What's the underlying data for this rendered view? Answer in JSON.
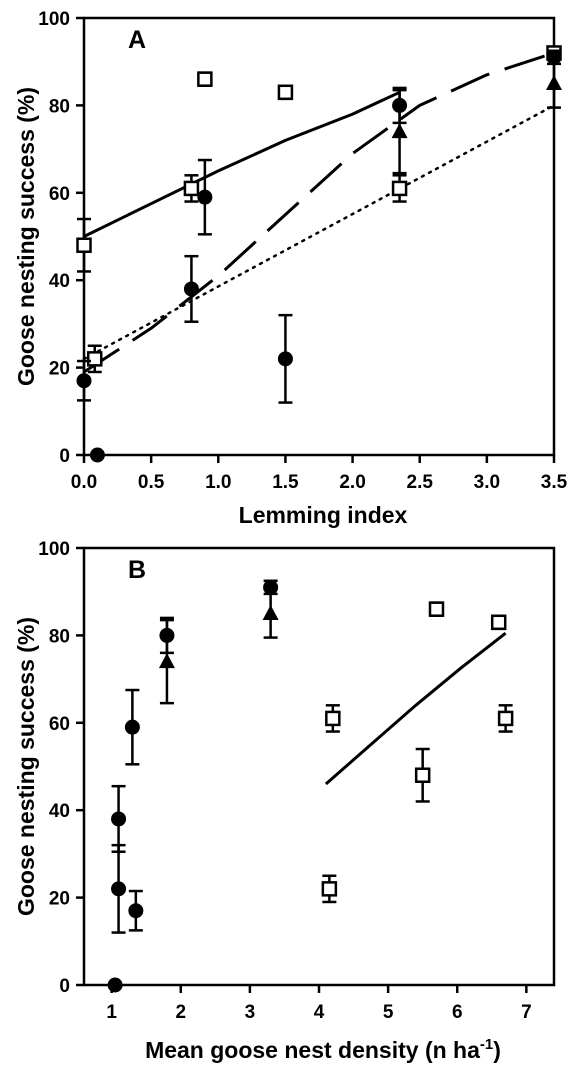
{
  "chart_data": [
    {
      "panel": "A",
      "type": "scatter",
      "xlabel": "Lemming index",
      "ylabel": "Goose nesting success (%)",
      "xlim": [
        0,
        3.5
      ],
      "ylim": [
        0,
        100
      ],
      "xticks": [
        "0.0",
        "0.5",
        "1.0",
        "1.5",
        "2.0",
        "2.5",
        "3.0",
        "3.5"
      ],
      "yticks": [
        "0",
        "20",
        "40",
        "60",
        "80",
        "100"
      ],
      "series": [
        {
          "marker": "open-square",
          "points": [
            {
              "x": 0.0,
              "y": 48,
              "err": 6
            },
            {
              "x": 0.08,
              "y": 22,
              "err": 3
            },
            {
              "x": 0.8,
              "y": 61,
              "err": 3
            },
            {
              "x": 0.9,
              "y": 86,
              "err": 1.5
            },
            {
              "x": 1.5,
              "y": 83,
              "err": 1.5
            },
            {
              "x": 2.35,
              "y": 61,
              "err": 3
            },
            {
              "x": 3.5,
              "y": 92,
              "err": 1
            }
          ]
        },
        {
          "marker": "filled-circle",
          "points": [
            {
              "x": 0.0,
              "y": 17,
              "err": 4.5
            },
            {
              "x": 0.1,
              "y": 0,
              "err": 0
            },
            {
              "x": 0.8,
              "y": 38,
              "err": 7.5
            },
            {
              "x": 0.9,
              "y": 59,
              "err": 8.5
            },
            {
              "x": 1.5,
              "y": 22,
              "err": 10
            },
            {
              "x": 2.35,
              "y": 80,
              "err": 4
            },
            {
              "x": 3.5,
              "y": 91,
              "err": 1.5
            }
          ]
        },
        {
          "marker": "filled-triangle",
          "points": [
            {
              "x": 2.35,
              "y": 74,
              "err": 9.5
            },
            {
              "x": 3.5,
              "y": 85,
              "err": 5.5
            }
          ]
        }
      ],
      "fits": [
        {
          "style": "solid",
          "points": [
            [
              0,
              50
            ],
            [
              0.5,
              57.5
            ],
            [
              1,
              65
            ],
            [
              1.5,
              72
            ],
            [
              2,
              78
            ],
            [
              2.35,
              83
            ]
          ]
        },
        {
          "style": "dashed",
          "points": [
            [
              0,
              19
            ],
            [
              0.5,
              29
            ],
            [
              1,
              41
            ],
            [
              1.5,
              55
            ],
            [
              2,
              69
            ],
            [
              2.5,
              80
            ],
            [
              3,
              87
            ],
            [
              3.5,
              92
            ]
          ]
        },
        {
          "style": "dotted",
          "points": [
            [
              0,
              22
            ],
            [
              3.5,
              80
            ]
          ]
        }
      ]
    },
    {
      "panel": "B",
      "type": "scatter",
      "xlabel": "Mean goose nest density (n ha",
      "xlabel_sup": "-1",
      "xlabel_tail": ")",
      "ylabel": "Goose nesting success (%)",
      "xlim": [
        0.6,
        7.4
      ],
      "ylim": [
        0,
        100
      ],
      "xticks": [
        "1",
        "2",
        "3",
        "4",
        "5",
        "6",
        "7"
      ],
      "yticks": [
        "0",
        "20",
        "40",
        "60",
        "80",
        "100"
      ],
      "series": [
        {
          "marker": "filled-circle",
          "points": [
            {
              "x": 1.05,
              "y": 0,
              "err": 0
            },
            {
              "x": 1.1,
              "y": 38,
              "err": 7.5
            },
            {
              "x": 1.1,
              "y": 22,
              "err": 10
            },
            {
              "x": 1.3,
              "y": 59,
              "err": 8.5
            },
            {
              "x": 1.35,
              "y": 17,
              "err": 4.5
            },
            {
              "x": 1.8,
              "y": 80,
              "err": 4
            },
            {
              "x": 3.3,
              "y": 91,
              "err": 1.5
            }
          ]
        },
        {
          "marker": "filled-triangle",
          "points": [
            {
              "x": 1.8,
              "y": 74,
              "err": 9.5
            },
            {
              "x": 3.3,
              "y": 85,
              "err": 5.5
            }
          ]
        },
        {
          "marker": "open-square",
          "points": [
            {
              "x": 4.15,
              "y": 22,
              "err": 3
            },
            {
              "x": 4.2,
              "y": 61,
              "err": 3
            },
            {
              "x": 5.5,
              "y": 48,
              "err": 6
            },
            {
              "x": 5.7,
              "y": 86,
              "err": 1.5
            },
            {
              "x": 6.6,
              "y": 83,
              "err": 1.5
            },
            {
              "x": 6.7,
              "y": 61,
              "err": 3
            }
          ]
        }
      ],
      "fits": [
        {
          "style": "solid",
          "points": [
            [
              4.1,
              46
            ],
            [
              4.75,
              55
            ],
            [
              5.4,
              64
            ],
            [
              6.05,
              72.5
            ],
            [
              6.7,
              80.5
            ]
          ]
        }
      ]
    }
  ]
}
